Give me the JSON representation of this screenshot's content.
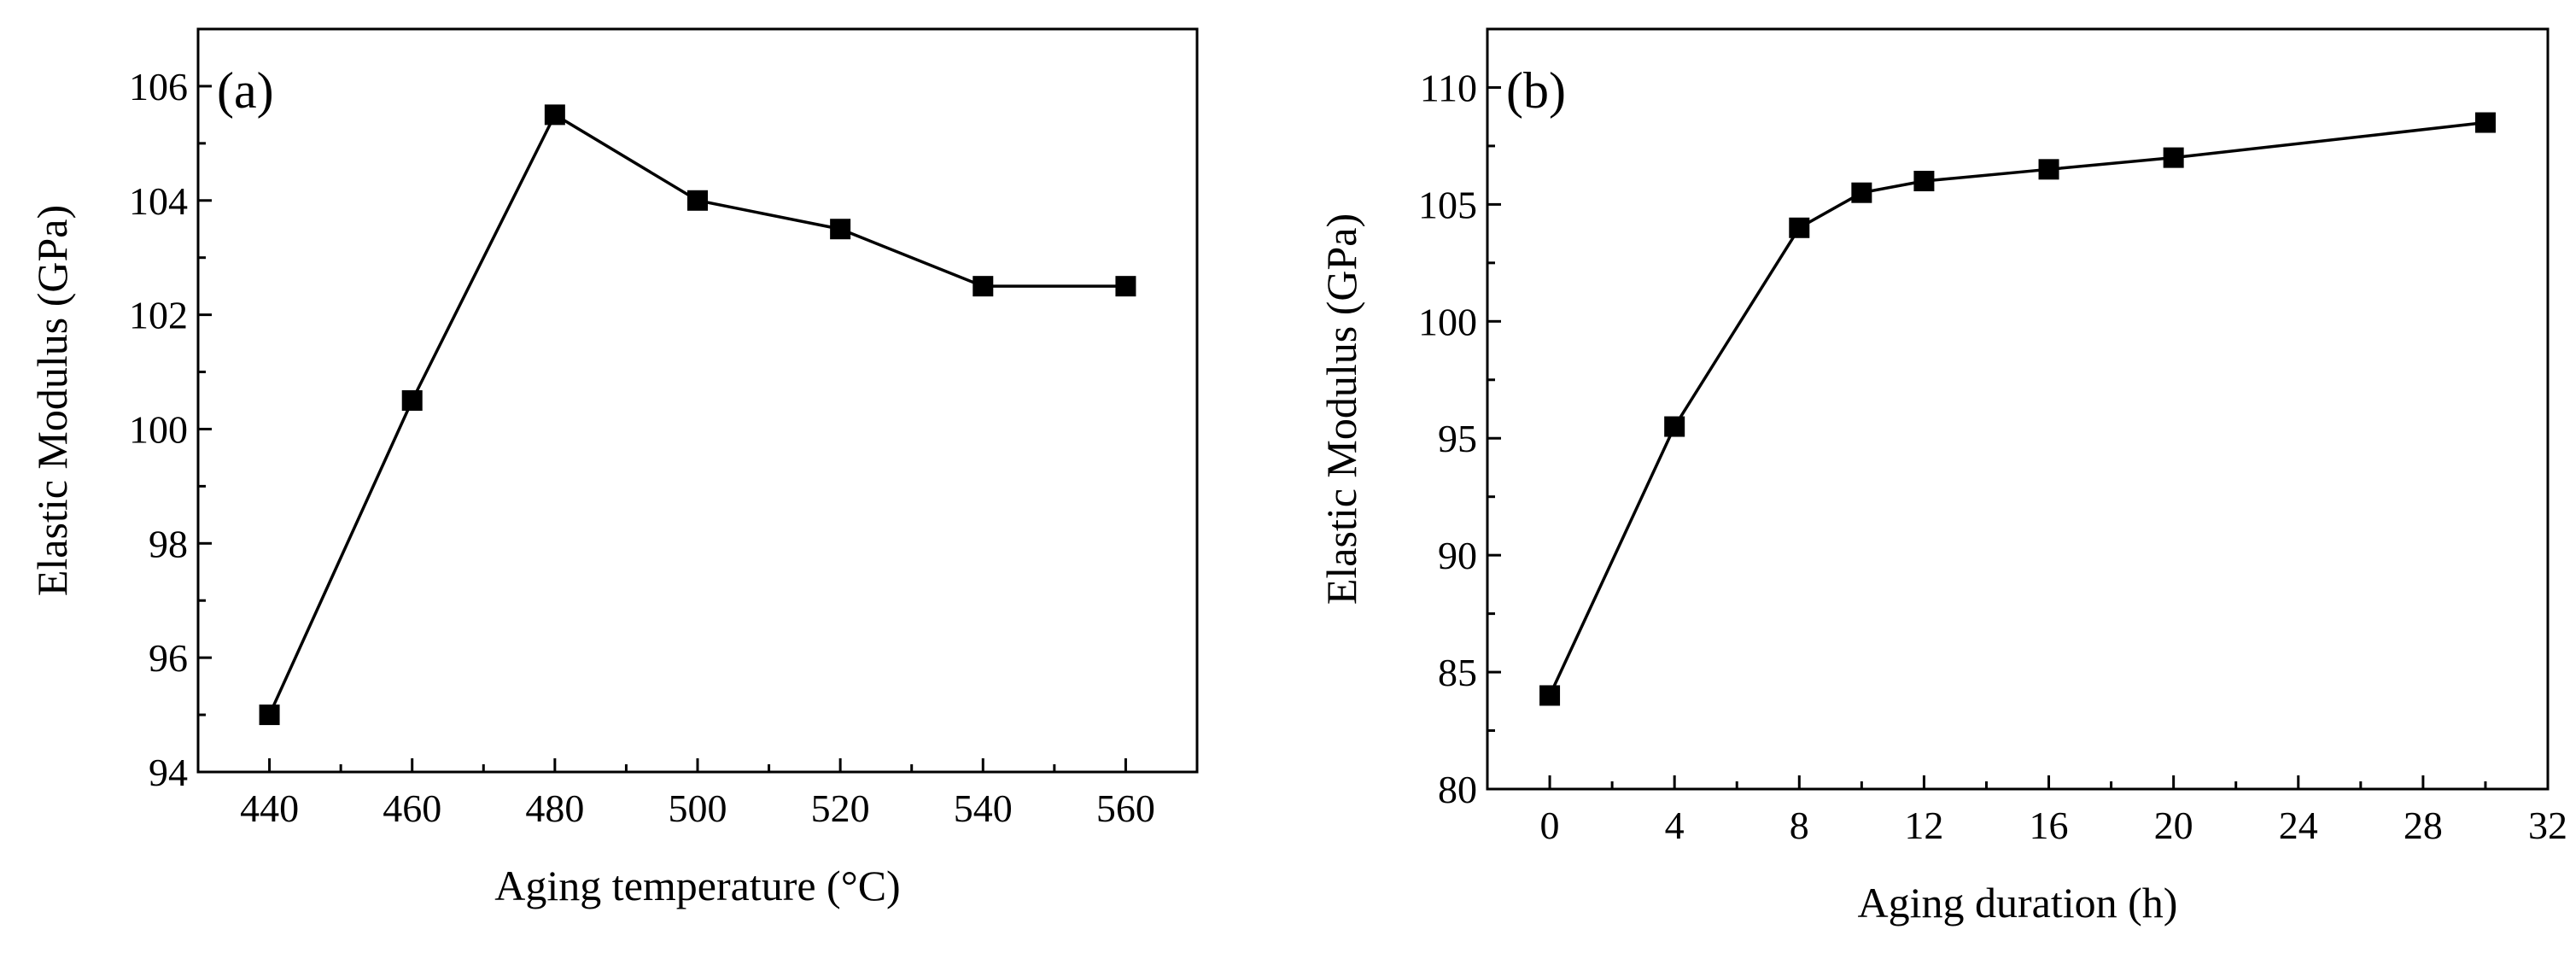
{
  "chart_data": [
    {
      "type": "line",
      "panel_label": "(a)",
      "title": "",
      "xlabel": "Aging temperature (°C)",
      "ylabel": "Elastic Modulus (GPa)",
      "xlim": [
        430,
        570
      ],
      "ylim": [
        94,
        107
      ],
      "xticks": [
        440,
        460,
        480,
        500,
        520,
        540,
        560
      ],
      "xtick_labels": [
        "440",
        "460",
        "480",
        "500",
        "520",
        "540",
        "560"
      ],
      "yticks": [
        94,
        96,
        98,
        100,
        102,
        104,
        106
      ],
      "ytick_labels": [
        "94",
        "96",
        "98",
        "100",
        "102",
        "104",
        "106"
      ],
      "grid": false,
      "marker": "square",
      "series": [
        {
          "name": "Elastic Modulus",
          "color": "#000000",
          "x": [
            440,
            460,
            480,
            500,
            520,
            540,
            560
          ],
          "values": [
            95,
            100.5,
            105.5,
            104,
            103.5,
            102.5,
            102.5
          ]
        }
      ]
    },
    {
      "type": "line",
      "panel_label": "(b)",
      "title": "",
      "xlabel": "Aging duration (h)",
      "ylabel": "Elastic Modulus (GPa)",
      "xlim": [
        -2,
        32
      ],
      "ylim": [
        80,
        112.5
      ],
      "xticks": [
        0,
        4,
        8,
        12,
        16,
        20,
        24,
        28,
        32
      ],
      "xtick_labels": [
        "0",
        "4",
        "8",
        "12",
        "16",
        "20",
        "24",
        "28",
        "32"
      ],
      "yticks": [
        80,
        85,
        90,
        95,
        100,
        105,
        110
      ],
      "ytick_labels": [
        "80",
        "85",
        "90",
        "95",
        "100",
        "105",
        "110"
      ],
      "grid": false,
      "marker": "square",
      "series": [
        {
          "name": "Elastic Modulus",
          "color": "#000000",
          "x": [
            0,
            4,
            8,
            10,
            12,
            16,
            20,
            30
          ],
          "values": [
            84,
            95.5,
            104,
            105.5,
            106,
            106.5,
            107,
            108.5
          ]
        }
      ]
    }
  ]
}
